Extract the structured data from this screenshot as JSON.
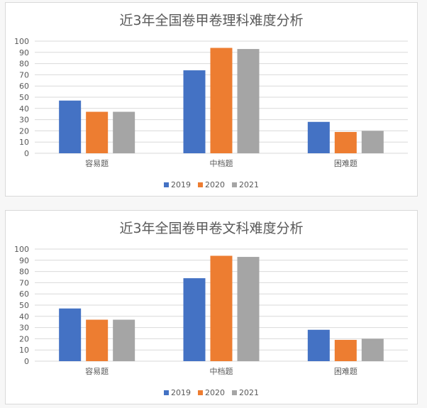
{
  "chart_data": [
    {
      "type": "bar",
      "title": "近3年全国卷甲卷理科难度分析",
      "categories": [
        "容易题",
        "中档题",
        "困难题"
      ],
      "series": [
        {
          "name": "2019",
          "values": [
            47,
            74,
            28
          ],
          "color": "#4472c4"
        },
        {
          "name": "2020",
          "values": [
            37,
            94,
            19
          ],
          "color": "#ed7d31"
        },
        {
          "name": "2021",
          "values": [
            37,
            93,
            20
          ],
          "color": "#a5a5a5"
        }
      ],
      "yticks": [
        "0",
        "10",
        "20",
        "30",
        "40",
        "50",
        "60",
        "70",
        "80",
        "90",
        "100"
      ],
      "ylim": [
        0,
        100
      ],
      "grid": true,
      "legend_position": "bottom"
    },
    {
      "type": "bar",
      "title": "近3年全国卷甲卷文科难度分析",
      "categories": [
        "容易题",
        "中档题",
        "困难题"
      ],
      "series": [
        {
          "name": "2019",
          "values": [
            47,
            74,
            28
          ],
          "color": "#4472c4"
        },
        {
          "name": "2020",
          "values": [
            37,
            94,
            19
          ],
          "color": "#ed7d31"
        },
        {
          "name": "2021",
          "values": [
            37,
            93,
            20
          ],
          "color": "#a5a5a5"
        }
      ],
      "yticks": [
        "0",
        "10",
        "20",
        "30",
        "40",
        "50",
        "60",
        "70",
        "80",
        "90",
        "100"
      ],
      "ylim": [
        0,
        100
      ],
      "grid": true,
      "legend_position": "bottom"
    }
  ]
}
